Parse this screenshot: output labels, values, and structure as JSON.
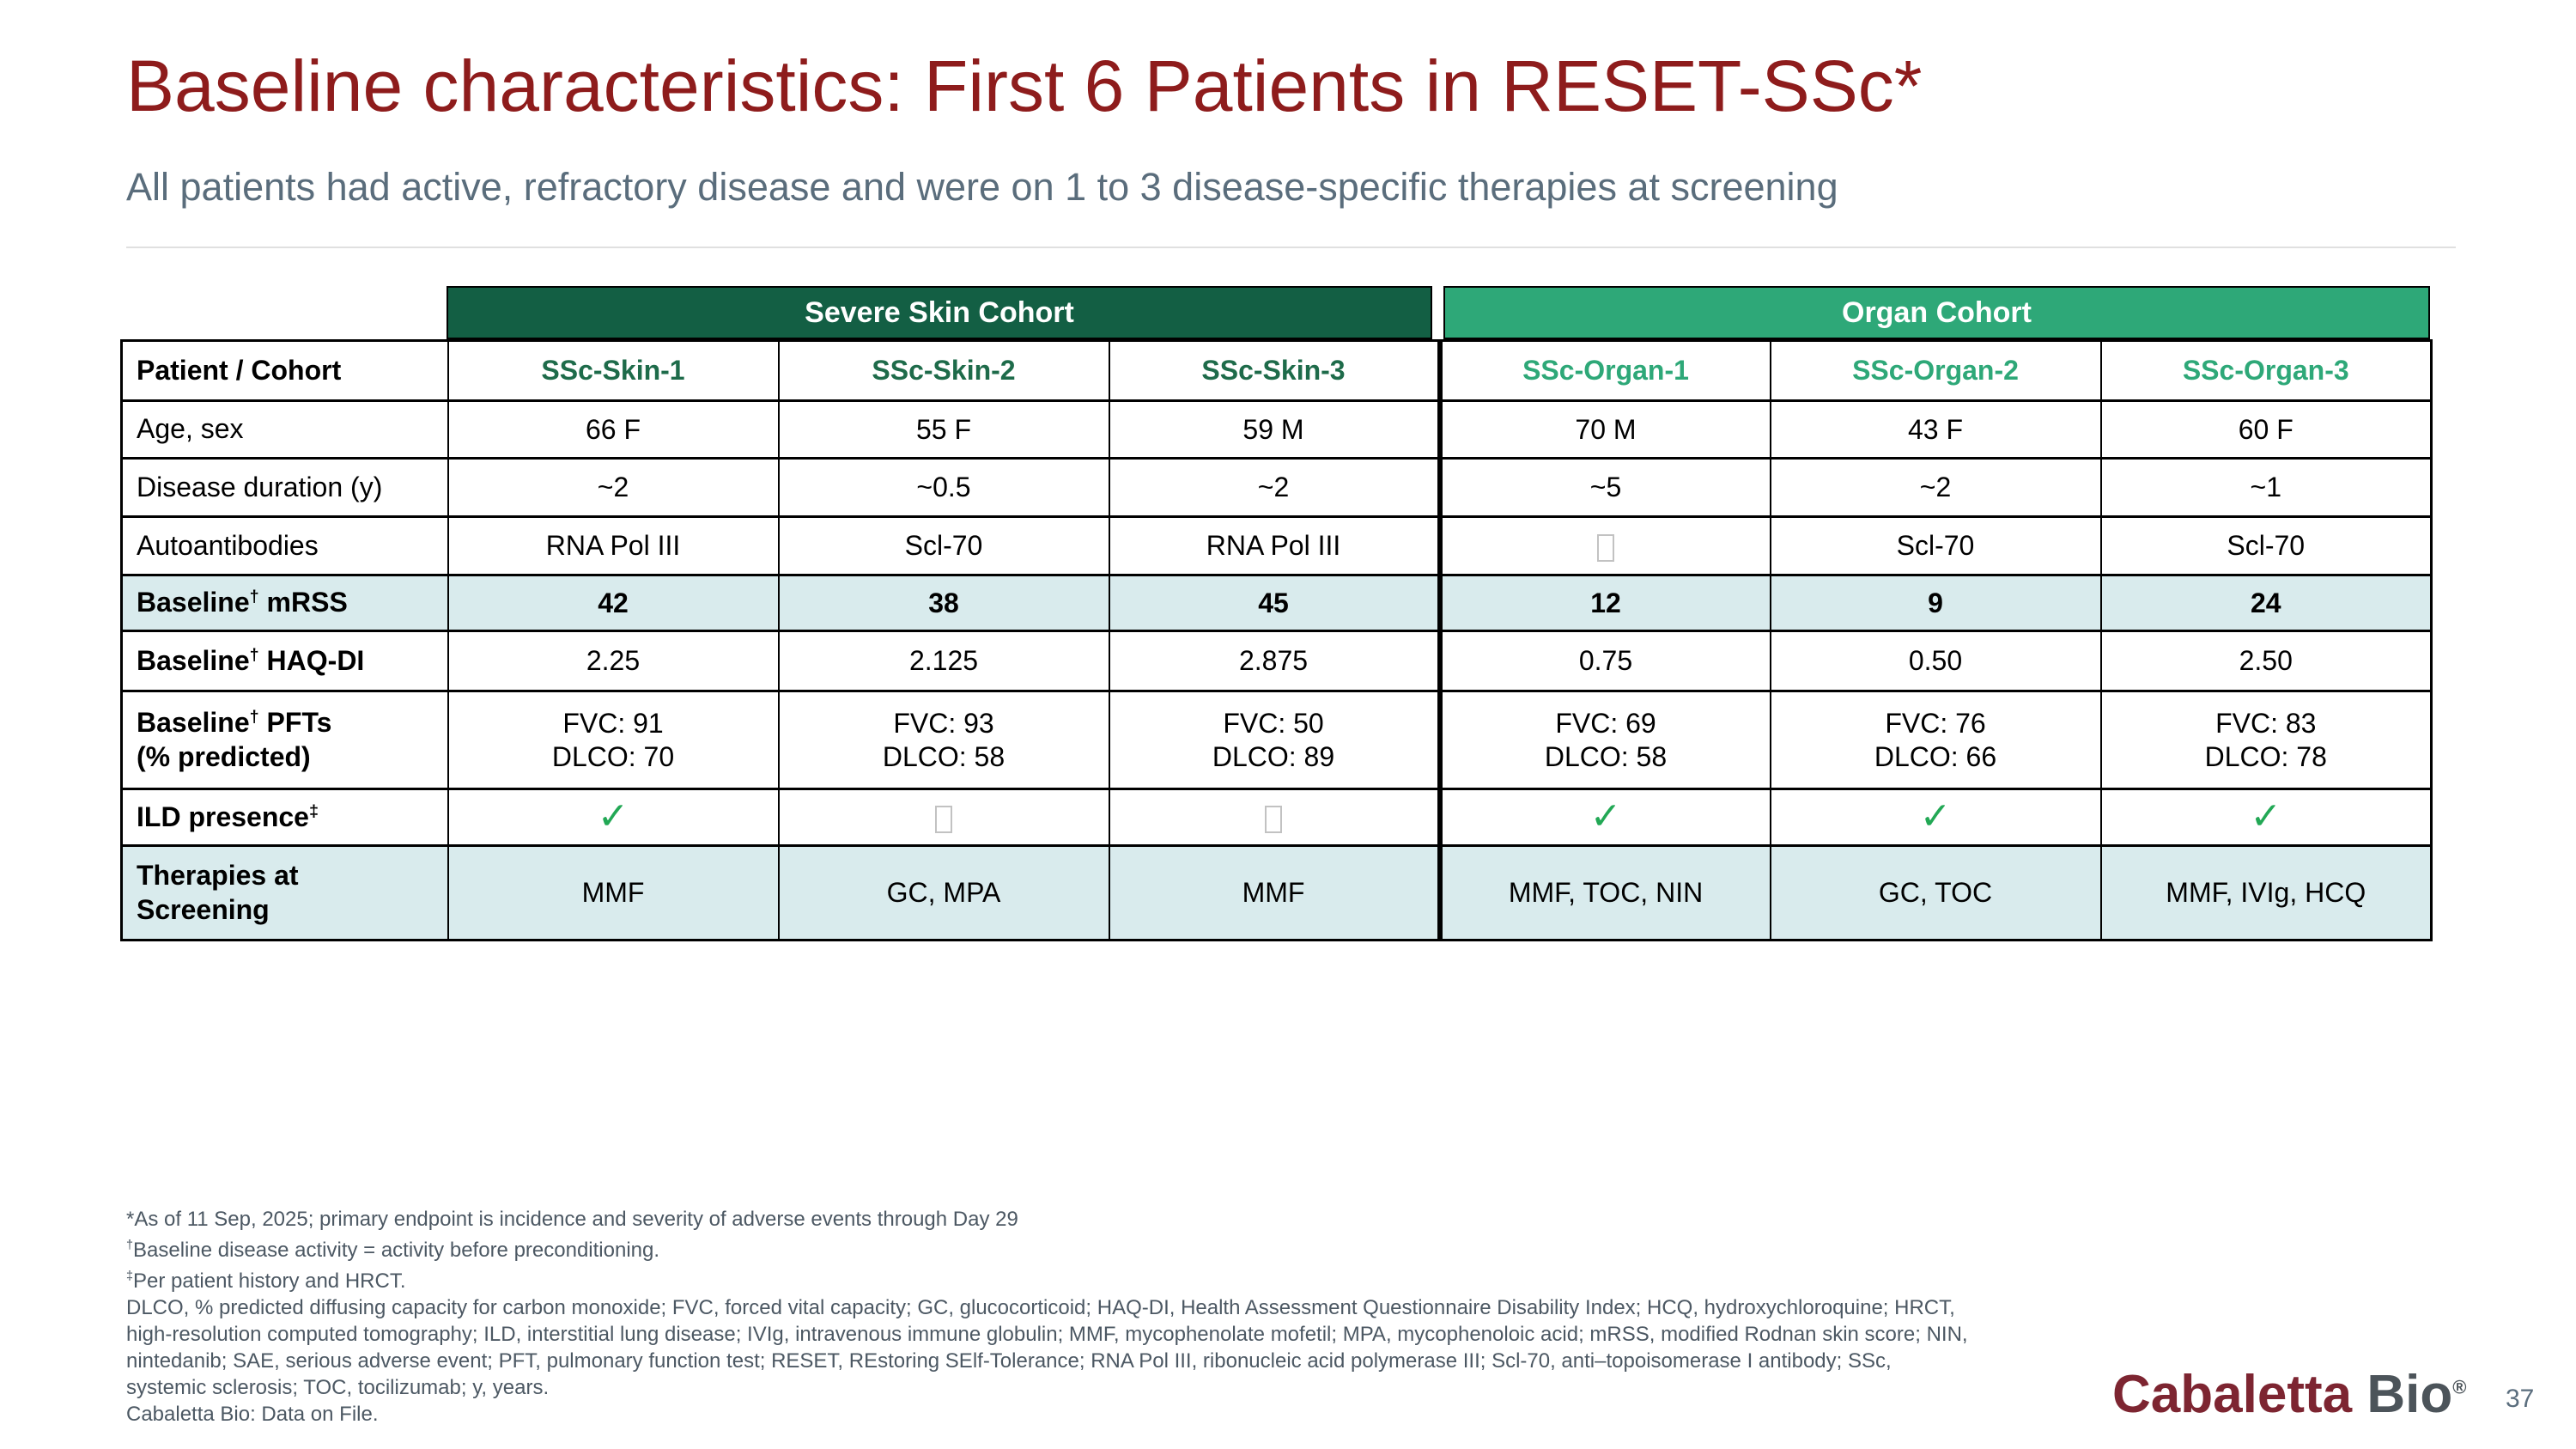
{
  "slide": {
    "title": "Baseline characteristics: First 6 Patients in RESET-SSc*",
    "subtitle": "All patients had active, refractory disease and were on 1 to 3 disease-specific therapies at screening",
    "page_number": "37"
  },
  "colors": {
    "title_red": "#8E1C1C",
    "subtitle_gray_blue": "#5A6D7C",
    "skin_cohort_green_dark": "#135F44",
    "organ_cohort_green": "#2EA878",
    "skin_header_text_green": "#1E6B4A",
    "organ_header_text_green": "#2EA878",
    "highlight_row_teal": "#D9EBED",
    "checkmark_green": "#22A855",
    "logo_maroon": "#7D2531",
    "logo_gray": "#4C545A"
  },
  "table": {
    "corner_label": "Patient / Cohort",
    "cohorts": [
      {
        "label": "Severe Skin Cohort",
        "color": "#135F44",
        "span": 3
      },
      {
        "label": "Organ Cohort",
        "color": "#2EA878",
        "span": 3
      }
    ],
    "patients": [
      {
        "id": "SSc-Skin-1",
        "cohort": "skin"
      },
      {
        "id": "SSc-Skin-2",
        "cohort": "skin"
      },
      {
        "id": "SSc-Skin-3",
        "cohort": "skin"
      },
      {
        "id": "SSc-Organ-1",
        "cohort": "organ"
      },
      {
        "id": "SSc-Organ-2",
        "cohort": "organ"
      },
      {
        "id": "SSc-Organ-3",
        "cohort": "organ"
      }
    ],
    "rows": [
      {
        "label": "Age, sex",
        "bold_label": false,
        "highlight": false,
        "bold_values": false,
        "values": [
          "66 F",
          "55 F",
          "59 M",
          "70 M",
          "43 F",
          "60 F"
        ]
      },
      {
        "label": "Disease duration (y)",
        "bold_label": false,
        "highlight": false,
        "bold_values": false,
        "values": [
          "~2",
          "~0.5",
          "~2",
          "~5",
          "~2",
          "~1"
        ]
      },
      {
        "label": "Autoantibodies",
        "bold_label": false,
        "highlight": false,
        "bold_values": false,
        "values": [
          "RNA Pol III",
          "Scl-70",
          "RNA Pol III",
          "□",
          "Scl-70",
          "Scl-70"
        ]
      },
      {
        "label": "Baseline† mRSS",
        "bold_label": true,
        "highlight": true,
        "bold_values": true,
        "values": [
          "42",
          "38",
          "45",
          "12",
          "9",
          "24"
        ]
      },
      {
        "label": "Baseline† HAQ-DI",
        "bold_label": true,
        "highlight": false,
        "bold_values": false,
        "values": [
          "2.25",
          "2.125",
          "2.875",
          "0.75",
          "0.50",
          "2.50"
        ]
      },
      {
        "label": "Baseline† PFTs\n(% predicted)",
        "bold_label": true,
        "highlight": false,
        "bold_values": false,
        "values": [
          "FVC: 91\nDLCO: 70",
          "FVC: 93\nDLCO: 58",
          "FVC: 50\nDLCO: 89",
          "FVC: 69\nDLCO: 58",
          "FVC: 76\nDLCO: 66",
          "FVC: 83\nDLCO: 78"
        ]
      },
      {
        "label": "ILD presence‡",
        "bold_label": true,
        "highlight": false,
        "bold_values": false,
        "values": [
          "✓",
          "□",
          "□",
          "✓",
          "✓",
          "✓"
        ]
      },
      {
        "label": "Therapies at\nScreening",
        "bold_label": true,
        "highlight": true,
        "bold_values": false,
        "values": [
          "MMF",
          "GC, MPA",
          "MMF",
          "MMF, TOC, NIN",
          "GC, TOC",
          "MMF, IVIg, HCQ"
        ]
      }
    ]
  },
  "footnotes": [
    "*As of 11 Sep, 2025; primary endpoint is incidence and severity of adverse events through Day 29",
    "†Baseline disease activity = activity before preconditioning.",
    "‡Per patient history and HRCT.",
    "DLCO, % predicted diffusing capacity for carbon monoxide; FVC, forced vital capacity; GC, glucocorticoid; HAQ-DI, Health Assessment Questionnaire Disability Index; HCQ, hydroxychloroquine; HRCT,",
    "high-resolution computed tomography; ILD, interstitial lung disease; IVIg, intravenous immune globulin; MMF, mycophenolate mofetil; MPA, mycophenoloic acid; mRSS, modified Rodnan skin score; NIN,",
    "nintedanib; SAE, serious adverse event; PFT, pulmonary function test;  RESET, REstoring SElf-Tolerance; RNA Pol III, ribonucleic acid polymerase III; Scl-70, anti–topoisomerase I antibody; SSc,",
    "systemic sclerosis; TOC, tocilizumab; y, years.",
    "Cabaletta Bio: Data on File."
  ],
  "logo": {
    "part1": "Cabaletta",
    "part2": "Bio",
    "registered": "®"
  }
}
